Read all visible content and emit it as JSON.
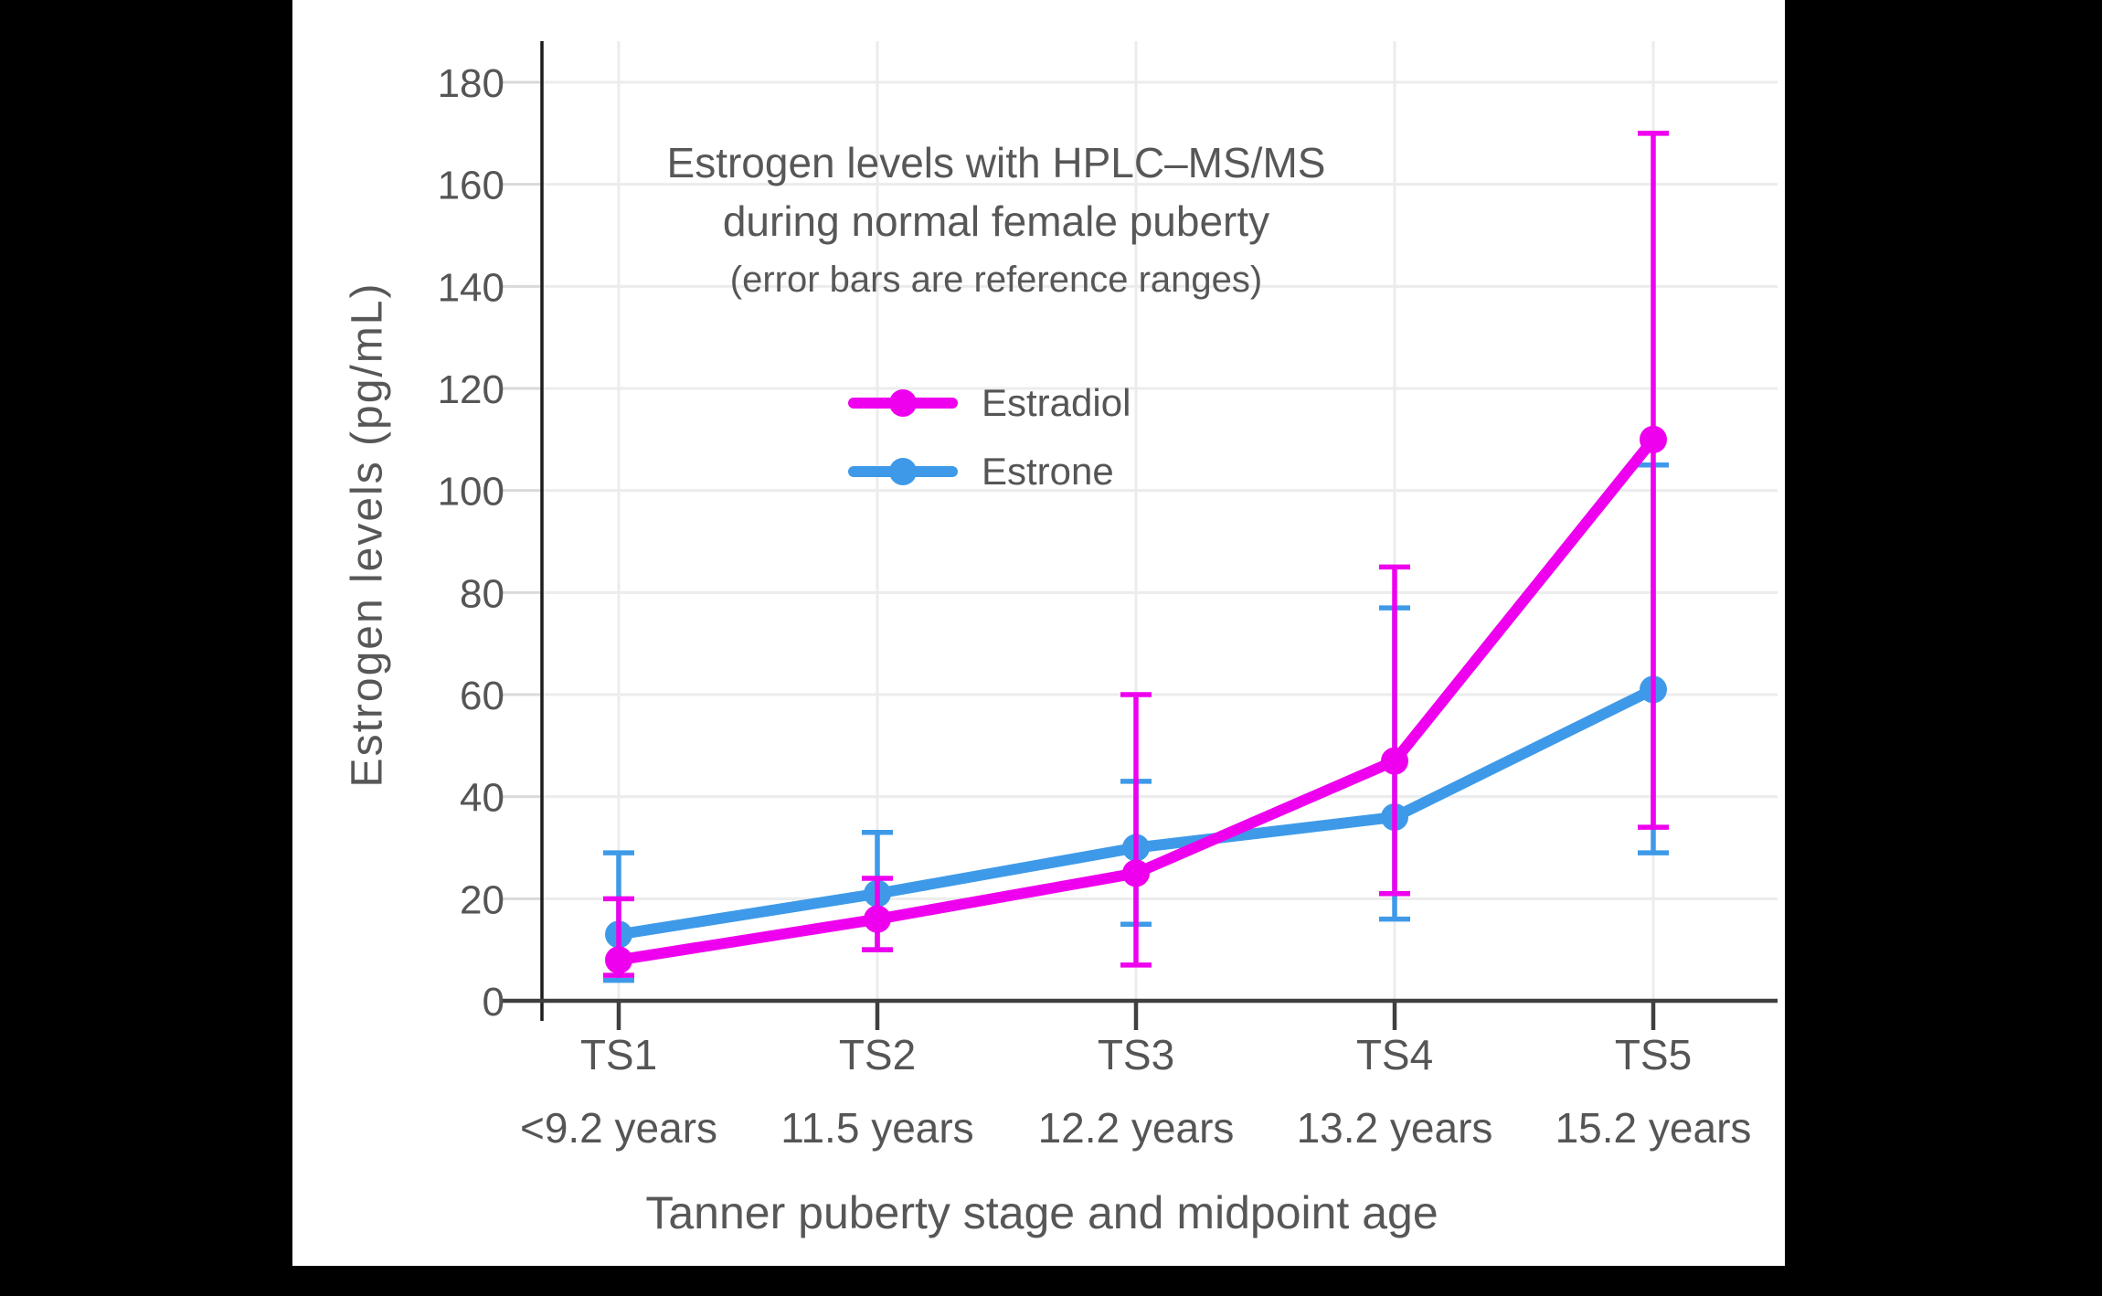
{
  "canvas": {
    "background": "#000000",
    "card_background": "#ffffff",
    "text_color": "#575757"
  },
  "chart_data": {
    "type": "line",
    "title_line1": "Estrogen levels with HPLC–MS/MS",
    "title_line2": "during normal female puberty",
    "subtitle": "(error bars are reference ranges)",
    "ylabel": "Estrogen levels (pg/mL)",
    "xlabel": "Tanner puberty stage and midpoint age",
    "categories": [
      "TS1",
      "TS2",
      "TS3",
      "TS4",
      "TS5"
    ],
    "category_sublabels": [
      "<9.2 years",
      "11.5 years",
      "12.2 years",
      "13.2 years",
      "15.2 years"
    ],
    "yticks": [
      0,
      20,
      40,
      60,
      80,
      100,
      120,
      140,
      160,
      180
    ],
    "ylim": [
      0,
      188
    ],
    "grid": true,
    "legend_position": "upper-center",
    "error_bar_meaning": "reference ranges",
    "series": [
      {
        "name": "Estradiol",
        "color": "#EE00EE",
        "values": [
          8,
          16,
          25,
          47,
          110
        ],
        "error_low": [
          5,
          10,
          7,
          21,
          34
        ],
        "error_high": [
          20,
          24,
          60,
          85,
          170
        ]
      },
      {
        "name": "Estrone",
        "color": "#3E9AE8",
        "values": [
          13,
          21,
          30,
          36,
          61
        ],
        "error_low": [
          4,
          10,
          15,
          16,
          29
        ],
        "error_high": [
          29,
          33,
          43,
          77,
          105
        ]
      }
    ]
  }
}
